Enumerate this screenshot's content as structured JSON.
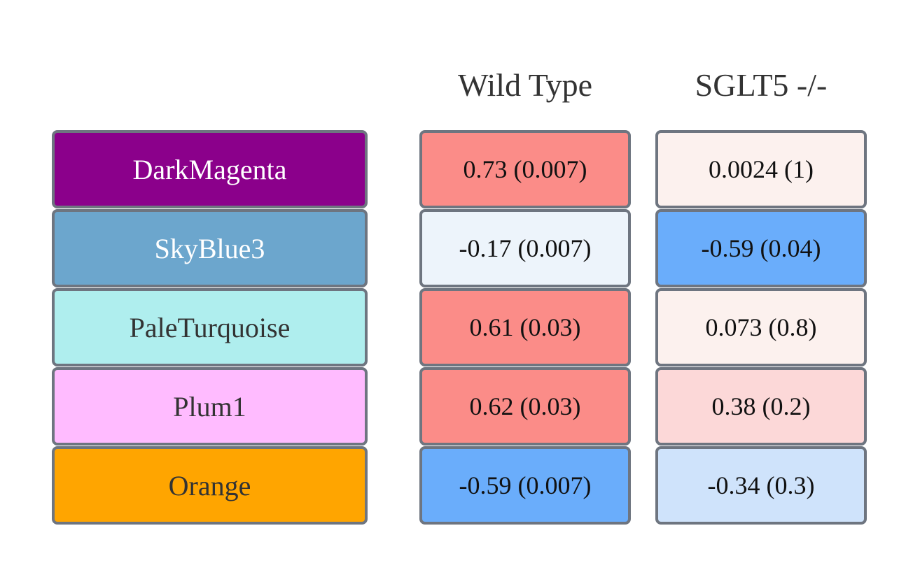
{
  "chart_data": {
    "type": "table",
    "columns": [
      "Wild Type",
      "SGLT5 -/-"
    ],
    "rows": [
      {
        "module": "DarkMagenta",
        "module_color": "#8b008b",
        "label_color": "#ffffff",
        "cells": [
          {
            "text": "0.73 (0.007)",
            "value": 0.73,
            "p": 0.007,
            "fill": "#fb8c88"
          },
          {
            "text": "0.0024 (1)",
            "value": 0.0024,
            "p": 1,
            "fill": "#fcf1ee"
          }
        ]
      },
      {
        "module": "SkyBlue3",
        "module_color": "#6ca6cd",
        "label_color": "#ffffff",
        "cells": [
          {
            "text": "-0.17 (0.007)",
            "value": -0.17,
            "p": 0.007,
            "fill": "#edf4fb"
          },
          {
            "text": "-0.59 (0.04)",
            "value": -0.59,
            "p": 0.04,
            "fill": "#6aadfb"
          }
        ]
      },
      {
        "module": "PaleTurquoise",
        "module_color": "#afeeee",
        "label_color": "#333333",
        "cells": [
          {
            "text": "0.61 (0.03)",
            "value": 0.61,
            "p": 0.03,
            "fill": "#fb8c88"
          },
          {
            "text": "0.073 (0.8)",
            "value": 0.073,
            "p": 0.8,
            "fill": "#fcf1ee"
          }
        ]
      },
      {
        "module": "Plum1",
        "module_color": "#ffbbff",
        "label_color": "#333333",
        "cells": [
          {
            "text": "0.62 (0.03)",
            "value": 0.62,
            "p": 0.03,
            "fill": "#fb8c88"
          },
          {
            "text": "0.38 (0.2)",
            "value": 0.38,
            "p": 0.2,
            "fill": "#fcd8d8"
          }
        ]
      },
      {
        "module": "Orange",
        "module_color": "#ffa500",
        "label_color": "#333333",
        "cells": [
          {
            "text": "-0.59 (0.007)",
            "value": -0.59,
            "p": 0.007,
            "fill": "#6aadfb"
          },
          {
            "text": "-0.34 (0.3)",
            "value": -0.34,
            "p": 0.3,
            "fill": "#cfe3fb"
          }
        ]
      }
    ]
  }
}
